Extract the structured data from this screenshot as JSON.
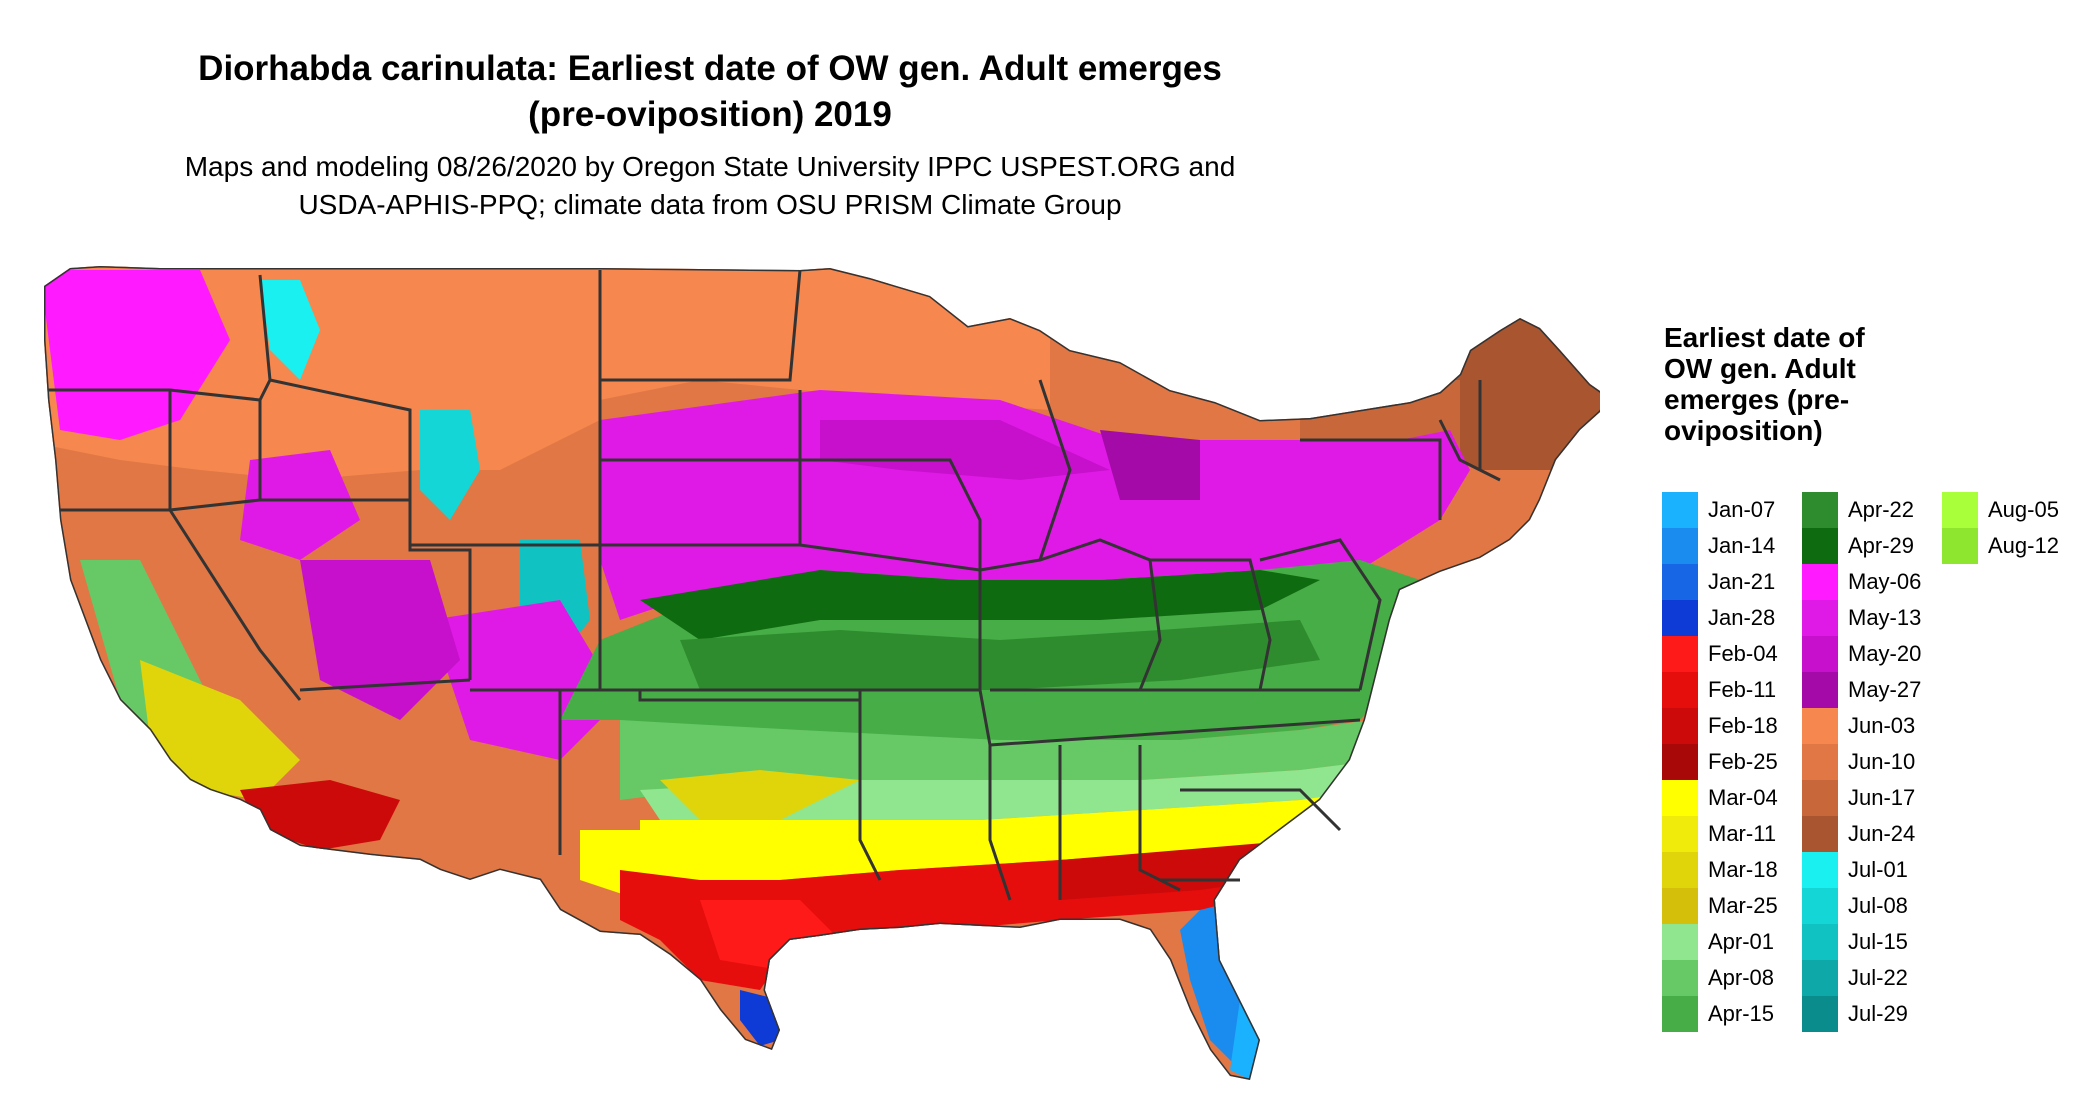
{
  "title": "Diorhabda carinulata: Earliest date of OW gen. Adult emerges (pre-oviposition) 2019",
  "subtitle": "Maps and modeling 08/26/2020 by Oregon State University IPPC USPEST.ORG and USDA-APHIS-PPQ; climate data from OSU PRISM Climate Group",
  "legend": {
    "title": "Earliest date of OW gen. Adult emerges (pre-oviposition)",
    "items": [
      {
        "label": "Jan-07",
        "color": "#1ab2ff"
      },
      {
        "label": "Jan-14",
        "color": "#1a8cf0"
      },
      {
        "label": "Jan-21",
        "color": "#1766e6"
      },
      {
        "label": "Jan-28",
        "color": "#0e3ad6"
      },
      {
        "label": "Feb-04",
        "color": "#ff1a1a"
      },
      {
        "label": "Feb-11",
        "color": "#e60d0d"
      },
      {
        "label": "Feb-18",
        "color": "#cc0a0a"
      },
      {
        "label": "Feb-25",
        "color": "#a80808"
      },
      {
        "label": "Mar-04",
        "color": "#ffff00"
      },
      {
        "label": "Mar-11",
        "color": "#f0eb0a"
      },
      {
        "label": "Mar-18",
        "color": "#e0d40a"
      },
      {
        "label": "Mar-25",
        "color": "#d4bf0a"
      },
      {
        "label": "Apr-01",
        "color": "#8fe68f"
      },
      {
        "label": "Apr-08",
        "color": "#66c966"
      },
      {
        "label": "Apr-15",
        "color": "#47ad47"
      },
      {
        "label": "Apr-22",
        "color": "#2e8c2e"
      },
      {
        "label": "Apr-29",
        "color": "#0f6b0f"
      },
      {
        "label": "May-06",
        "color": "#ff1aff"
      },
      {
        "label": "May-13",
        "color": "#e01ae6"
      },
      {
        "label": "May-20",
        "color": "#c710cc"
      },
      {
        "label": "May-27",
        "color": "#a30aa8"
      },
      {
        "label": "Jun-03",
        "color": "#f5874f"
      },
      {
        "label": "Jun-10",
        "color": "#e07745"
      },
      {
        "label": "Jun-17",
        "color": "#c8683a"
      },
      {
        "label": "Jun-24",
        "color": "#a85530"
      },
      {
        "label": "Jul-01",
        "color": "#1af0f0"
      },
      {
        "label": "Jul-08",
        "color": "#14d6d6"
      },
      {
        "label": "Jul-15",
        "color": "#10c2c2"
      },
      {
        "label": "Jul-22",
        "color": "#0ea8a8"
      },
      {
        "label": "Jul-29",
        "color": "#0a8c8c"
      },
      {
        "label": "Aug-05",
        "color": "#a8ff3a"
      },
      {
        "label": "Aug-12",
        "color": "#8ee62e"
      }
    ]
  }
}
